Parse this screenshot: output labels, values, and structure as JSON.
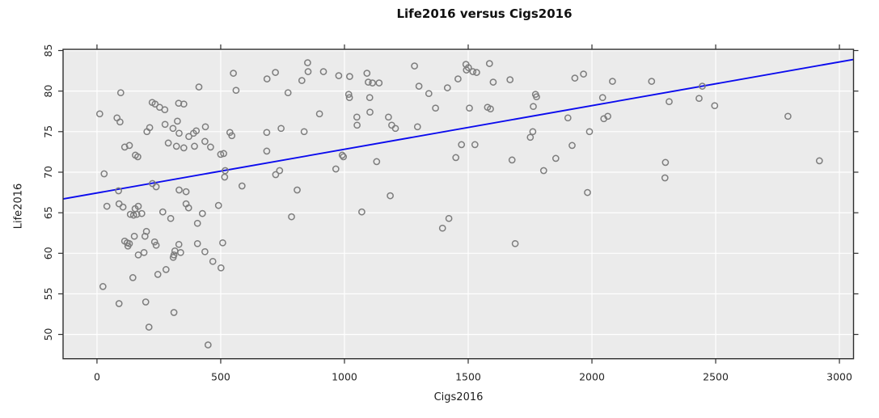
{
  "chart_data": {
    "type": "scatter",
    "title": "Life2016 versus Cigs2016",
    "xlabel": "Cigs2016",
    "ylabel": "Life2016",
    "xlim": [
      -137,
      3057
    ],
    "ylim": [
      47.0,
      85.15
    ],
    "grid": true,
    "xticks": [
      0,
      500,
      1000,
      1500,
      2000,
      2500,
      3000
    ],
    "xtick_labels": [
      "0",
      "500",
      "1000",
      "1500",
      "2000",
      "2500",
      "3000"
    ],
    "yticks": [
      50,
      55,
      60,
      65,
      70,
      75,
      80,
      85
    ],
    "ytick_labels": [
      "50",
      "55",
      "60",
      "65",
      "70",
      "75",
      "80",
      "85"
    ],
    "regression_line": {
      "x1": -137,
      "y1": 66.7,
      "x2": 3057,
      "y2": 83.9
    },
    "colors": {
      "panel_bg": "#ebebeb",
      "grid": "#ffffff",
      "point": "#7d7d7d",
      "line": "#0b0bee",
      "border": "#2e2e2e",
      "text": "#262626"
    },
    "series": [
      {
        "name": "points",
        "marker": "open-circle",
        "points": [
          [
            851,
            83.5
          ],
          [
            853,
            82.4
          ],
          [
            915,
            82.4
          ],
          [
            828,
            81.3
          ],
          [
            721,
            82.3
          ],
          [
            687,
            81.5
          ],
          [
            551,
            82.2
          ],
          [
            562,
            80.1
          ],
          [
            772,
            79.8
          ],
          [
            412,
            80.5
          ],
          [
            96,
            79.8
          ],
          [
            223,
            78.6
          ],
          [
            235,
            78.4
          ],
          [
            253,
            78.0
          ],
          [
            274,
            77.7
          ],
          [
            330,
            78.5
          ],
          [
            351,
            78.4
          ],
          [
            11,
            77.2
          ],
          [
            81,
            76.7
          ],
          [
            93,
            76.2
          ],
          [
            899,
            77.2
          ],
          [
            325,
            76.3
          ],
          [
            213,
            75.5
          ],
          [
            202,
            75.0
          ],
          [
            275,
            75.9
          ],
          [
            307,
            75.4
          ],
          [
            332,
            74.8
          ],
          [
            371,
            74.4
          ],
          [
            390,
            74.8
          ],
          [
            401,
            75.1
          ],
          [
            438,
            75.6
          ],
          [
            537,
            74.9
          ],
          [
            545,
            74.5
          ],
          [
            686,
            74.9
          ],
          [
            744,
            75.4
          ],
          [
            837,
            75.0
          ],
          [
            288,
            73.6
          ],
          [
            321,
            73.2
          ],
          [
            351,
            73.0
          ],
          [
            394,
            73.2
          ],
          [
            436,
            73.8
          ],
          [
            459,
            73.1
          ],
          [
            500,
            72.2
          ],
          [
            512,
            72.3
          ],
          [
            686,
            72.6
          ],
          [
            112,
            73.1
          ],
          [
            131,
            73.3
          ],
          [
            155,
            72.1
          ],
          [
            165,
            71.9
          ],
          [
            29,
            69.8
          ],
          [
            518,
            70.2
          ],
          [
            516,
            69.4
          ],
          [
            586,
            68.3
          ],
          [
            722,
            69.7
          ],
          [
            738,
            70.2
          ],
          [
            809,
            67.8
          ],
          [
            224,
            68.6
          ],
          [
            239,
            68.2
          ],
          [
            332,
            67.8
          ],
          [
            360,
            67.6
          ],
          [
            87,
            67.7
          ],
          [
            40,
            65.8
          ],
          [
            89,
            66.1
          ],
          [
            105,
            65.7
          ],
          [
            154,
            65.5
          ],
          [
            167,
            65.8
          ],
          [
            360,
            66.1
          ],
          [
            370,
            65.6
          ],
          [
            491,
            65.9
          ],
          [
            135,
            64.8
          ],
          [
            148,
            64.7
          ],
          [
            161,
            64.8
          ],
          [
            181,
            64.9
          ],
          [
            266,
            65.1
          ],
          [
            298,
            64.3
          ],
          [
            426,
            64.9
          ],
          [
            786,
            64.5
          ],
          [
            406,
            63.7
          ],
          [
            112,
            61.5
          ],
          [
            122,
            61.3
          ],
          [
            131,
            61.2
          ],
          [
            151,
            62.1
          ],
          [
            125,
            60.9
          ],
          [
            194,
            62.1
          ],
          [
            200,
            62.7
          ],
          [
            233,
            61.4
          ],
          [
            239,
            61.0
          ],
          [
            167,
            59.8
          ],
          [
            190,
            60.1
          ],
          [
            311,
            59.8
          ],
          [
            315,
            60.3
          ],
          [
            331,
            61.1
          ],
          [
            338,
            60.1
          ],
          [
            406,
            61.2
          ],
          [
            436,
            60.2
          ],
          [
            468,
            59.0
          ],
          [
            501,
            58.2
          ],
          [
            279,
            58.0
          ],
          [
            145,
            57.0
          ],
          [
            24,
            55.9
          ],
          [
            89,
            53.8
          ],
          [
            197,
            54.0
          ],
          [
            311,
            52.7
          ],
          [
            210,
            50.9
          ],
          [
            449,
            48.7
          ],
          [
            508,
            61.3
          ],
          [
            246,
            57.4
          ],
          [
            308,
            59.5
          ],
          [
            1283,
            83.1
          ],
          [
            1491,
            83.3
          ],
          [
            1501,
            82.9
          ],
          [
            1493,
            82.6
          ],
          [
            1519,
            82.4
          ],
          [
            1534,
            82.3
          ],
          [
            1586,
            83.4
          ],
          [
            977,
            81.9
          ],
          [
            1021,
            81.8
          ],
          [
            1091,
            82.2
          ],
          [
            1096,
            81.1
          ],
          [
            1113,
            81.0
          ],
          [
            1140,
            81.0
          ],
          [
            1459,
            81.5
          ],
          [
            1601,
            81.1
          ],
          [
            1669,
            81.4
          ],
          [
            1931,
            81.6
          ],
          [
            1966,
            82.1
          ],
          [
            1301,
            80.6
          ],
          [
            1416,
            80.4
          ],
          [
            1341,
            79.7
          ],
          [
            1017,
            79.6
          ],
          [
            1020,
            79.2
          ],
          [
            1102,
            79.2
          ],
          [
            1772,
            79.6
          ],
          [
            1776,
            79.3
          ],
          [
            1368,
            77.9
          ],
          [
            1505,
            77.9
          ],
          [
            1578,
            78.0
          ],
          [
            1590,
            77.8
          ],
          [
            1763,
            78.1
          ],
          [
            1103,
            77.4
          ],
          [
            1050,
            76.8
          ],
          [
            1051,
            75.8
          ],
          [
            1178,
            76.8
          ],
          [
            1191,
            75.8
          ],
          [
            1206,
            75.4
          ],
          [
            1295,
            75.6
          ],
          [
            1903,
            76.7
          ],
          [
            1761,
            75.0
          ],
          [
            1751,
            74.3
          ],
          [
            1990,
            75.0
          ],
          [
            1473,
            73.4
          ],
          [
            1527,
            73.4
          ],
          [
            991,
            72.1
          ],
          [
            996,
            71.9
          ],
          [
            1130,
            71.3
          ],
          [
            1450,
            71.8
          ],
          [
            1677,
            71.5
          ],
          [
            1854,
            71.7
          ],
          [
            1805,
            70.2
          ],
          [
            1920,
            73.3
          ],
          [
            965,
            70.4
          ],
          [
            1185,
            67.1
          ],
          [
            1982,
            67.5
          ],
          [
            2083,
            81.2
          ],
          [
            2241,
            81.2
          ],
          [
            2446,
            80.6
          ],
          [
            2043,
            79.2
          ],
          [
            2312,
            78.7
          ],
          [
            2433,
            79.1
          ],
          [
            2496,
            78.2
          ],
          [
            2048,
            76.6
          ],
          [
            2064,
            76.9
          ],
          [
            2792,
            76.9
          ],
          [
            2297,
            71.2
          ],
          [
            2919,
            71.4
          ],
          [
            2295,
            69.3
          ],
          [
            1070,
            65.1
          ],
          [
            1422,
            64.3
          ],
          [
            1396,
            63.1
          ],
          [
            1690,
            61.2
          ]
        ]
      }
    ]
  }
}
